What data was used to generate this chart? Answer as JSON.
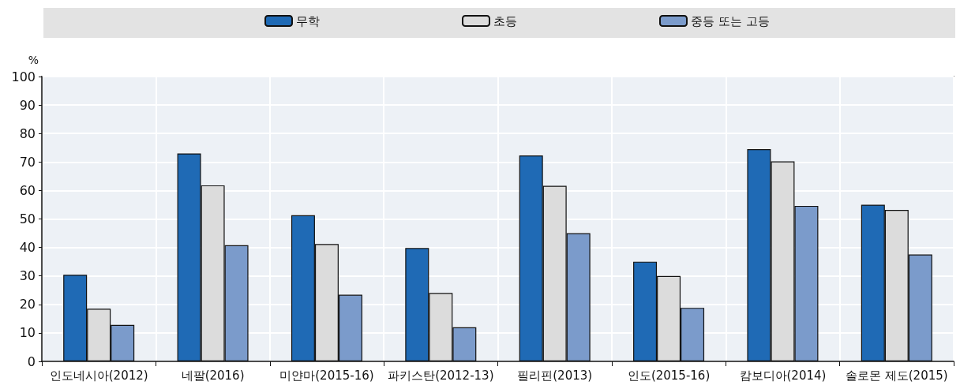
{
  "chart_data": {
    "type": "bar",
    "ylabel": "%",
    "categories": [
      "인도네시아(2012)",
      "네팔(2016)",
      "미얀마(2015-16)",
      "파키스탄(2012-13)",
      "필리핀(2013)",
      "인도(2015-16)",
      "캄보디아(2014)",
      "솔로몬 제도(2015)"
    ],
    "series": [
      {
        "name": "무학",
        "color": "#1f6ab5",
        "values": [
          30.4,
          73,
          51.3,
          39.8,
          72.3,
          35,
          74.5,
          55
        ]
      },
      {
        "name": "초등",
        "color": "#dcdcdc",
        "values": [
          18.5,
          61.8,
          41.2,
          24,
          61.6,
          30,
          70.2,
          53.2
        ]
      },
      {
        "name": "중등 또는 고등",
        "color": "#7b9bcb",
        "values": [
          12.8,
          40.8,
          23.4,
          12,
          45,
          18.8,
          54.6,
          37.5
        ]
      }
    ],
    "ylim": [
      0,
      100
    ],
    "yticks": [
      0,
      10,
      20,
      30,
      40,
      50,
      60,
      70,
      80,
      90,
      100
    ],
    "grid": true,
    "legend": "top"
  }
}
